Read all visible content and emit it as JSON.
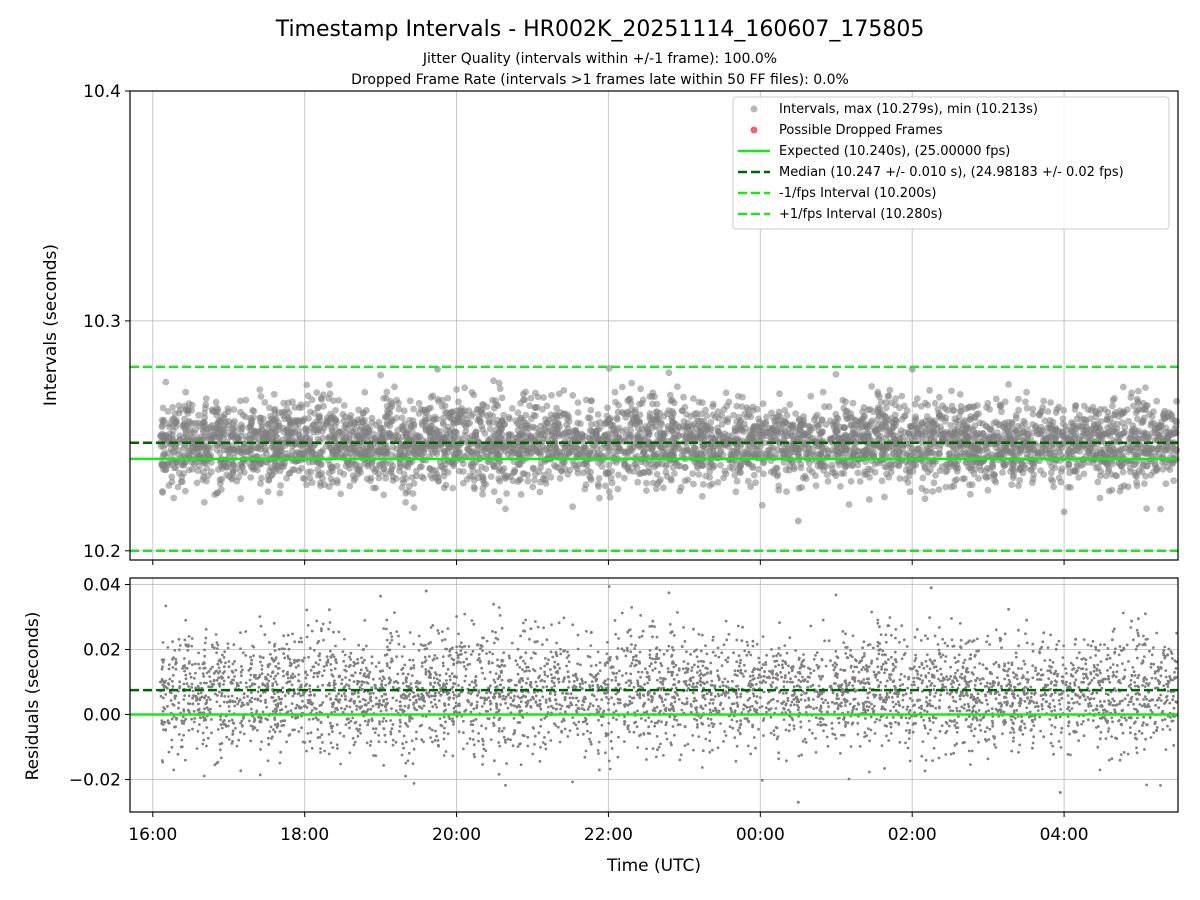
{
  "title": "Timestamp Intervals - HR002K_20251114_160607_175805",
  "subtitle_1": "Jitter Quality (intervals within +/-1 frame): 100.0%",
  "subtitle_2": "Dropped Frame Rate (intervals >1 frames late within 50 FF files): 0.0%",
  "colors": {
    "points": "#808080",
    "dropped": "#e8404a",
    "expected": "#1ee61e",
    "median": "#006400",
    "fps_bounds": "#1ee61e",
    "grid": "#b0b0b0"
  },
  "chart_data": [
    {
      "type": "scatter",
      "panel": "intervals",
      "ylabel": "Intervals (seconds)",
      "x_range_hours": [
        15.7,
        29.5
      ],
      "ylim": [
        10.196,
        10.4
      ],
      "y_ticks": [
        10.2,
        10.3,
        10.4
      ],
      "y_tick_labels": [
        "10.2",
        "10.3",
        "10.4"
      ],
      "grid": true,
      "legend_position": "upper-right",
      "legend": [
        "Intervals, max (10.279s), min (10.213s)",
        "Possible Dropped Frames",
        "Expected (10.240s), (25.00000 fps)",
        "Median (10.247 +/- 0.010 s), (24.98183 +/- 0.02 fps)",
        "-1/fps Interval (10.200s)",
        "+1/fps Interval (10.280s)"
      ],
      "lines": {
        "expected": 10.24,
        "median": 10.247,
        "minus_1_fps": 10.2,
        "plus_1_fps": 10.28
      },
      "series": {
        "name": "Intervals",
        "x_start_hours": 16.1,
        "x_end_hours": 29.5,
        "count": 4600,
        "center": 10.247,
        "std": 0.009,
        "max": 10.279,
        "min": 10.213
      },
      "dropped_frames": []
    },
    {
      "type": "scatter",
      "panel": "residuals",
      "ylabel": "Residuals (seconds)",
      "xlabel": "Time (UTC)",
      "x_range_hours": [
        15.7,
        29.5
      ],
      "ylim": [
        -0.03,
        0.042
      ],
      "y_ticks": [
        -0.02,
        0.0,
        0.02,
        0.04
      ],
      "y_tick_labels": [
        "−0.02",
        "0.00",
        "0.02",
        "0.04"
      ],
      "x_ticks_hours": [
        16,
        18,
        20,
        22,
        24,
        26,
        28
      ],
      "x_tick_labels": [
        "16:00",
        "18:00",
        "20:00",
        "22:00",
        "00:00",
        "02:00",
        "04:00"
      ],
      "grid": true,
      "lines": {
        "zero": 0.0,
        "median": 0.0075
      },
      "series": {
        "name": "Residuals",
        "x_start_hours": 16.1,
        "x_end_hours": 29.5,
        "count": 4600,
        "center": 0.007,
        "std": 0.009,
        "max": 0.039,
        "min": -0.027
      }
    }
  ]
}
